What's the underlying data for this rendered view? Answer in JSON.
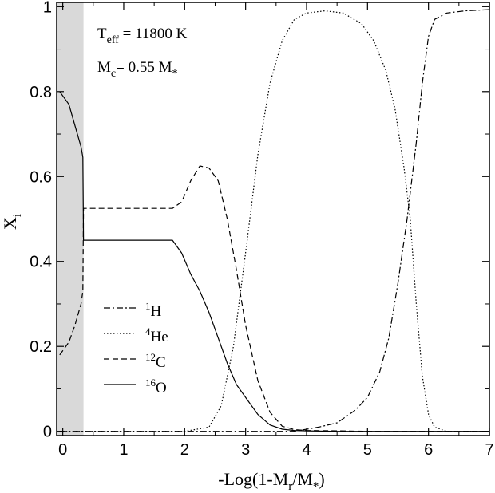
{
  "chart_data": {
    "type": "line",
    "xlabel": {
      "main": "-Log(1-M",
      "sub_r": "r",
      "mid": "/M",
      "sub_star": "*",
      "end": ")"
    },
    "ylabel": {
      "main": "X",
      "sub": "i"
    },
    "xlim": [
      -0.1,
      7.0
    ],
    "ylim": [
      -0.01,
      1.01
    ],
    "xticks": [
      "0",
      "1",
      "2",
      "3",
      "4",
      "5",
      "6",
      "7"
    ],
    "xtick_values": [
      0,
      1,
      2,
      3,
      4,
      5,
      6,
      7
    ],
    "yticks": [
      "0",
      "0.2",
      "0.4",
      "0.6",
      "0.8",
      "1"
    ],
    "ytick_values": [
      0,
      0.2,
      0.4,
      0.6,
      0.8,
      1.0
    ],
    "shaded_region": {
      "x0": -0.1,
      "x1": 0.34,
      "color": "#d9d9d9"
    },
    "annotations": {
      "teff": {
        "main": "T",
        "sub": "eff",
        "rest": " = 11800 K"
      },
      "mc": {
        "main": "M",
        "sub": "c",
        "rest": "= 0.55 M",
        "sub2": "*"
      }
    },
    "series": [
      {
        "name": "H",
        "superscript": "1",
        "style": "dashdot",
        "x": [
          -0.05,
          0.5,
          1,
          2,
          3,
          3.8,
          4.2,
          4.5,
          4.8,
          5.0,
          5.2,
          5.35,
          5.5,
          5.65,
          5.8,
          5.9,
          6.0,
          6.1,
          6.3,
          6.6,
          7.0
        ],
        "y": [
          0.0,
          0.0,
          0.0,
          0.0,
          0.0,
          0.0,
          0.01,
          0.02,
          0.05,
          0.08,
          0.14,
          0.22,
          0.35,
          0.5,
          0.68,
          0.82,
          0.93,
          0.97,
          0.985,
          0.99,
          0.993
        ]
      },
      {
        "name": "He",
        "superscript": "4",
        "style": "dotted",
        "x": [
          -0.05,
          1,
          2,
          2.4,
          2.6,
          2.8,
          3.0,
          3.2,
          3.4,
          3.6,
          3.8,
          4.0,
          4.3,
          4.6,
          4.9,
          5.1,
          5.3,
          5.45,
          5.6,
          5.7,
          5.8,
          5.9,
          6.0,
          6.1,
          6.3,
          7.0
        ],
        "y": [
          0.0,
          0.0,
          0.0,
          0.01,
          0.06,
          0.2,
          0.42,
          0.65,
          0.82,
          0.92,
          0.97,
          0.985,
          0.99,
          0.985,
          0.96,
          0.92,
          0.85,
          0.76,
          0.62,
          0.5,
          0.3,
          0.13,
          0.04,
          0.01,
          0.0,
          0.0
        ]
      },
      {
        "name": "C",
        "superscript": "12",
        "style": "dashed",
        "x": [
          -0.05,
          0.1,
          0.2,
          0.3,
          0.33,
          0.34,
          0.5,
          1.0,
          1.5,
          1.8,
          1.95,
          2.1,
          2.25,
          2.4,
          2.55,
          2.7,
          2.85,
          3.0,
          3.2,
          3.4,
          3.6,
          3.8,
          4.0,
          4.5,
          5.0,
          7.0
        ],
        "y": [
          0.18,
          0.21,
          0.25,
          0.3,
          0.33,
          0.525,
          0.525,
          0.525,
          0.525,
          0.525,
          0.54,
          0.59,
          0.625,
          0.62,
          0.59,
          0.5,
          0.38,
          0.25,
          0.12,
          0.045,
          0.012,
          0.004,
          0.002,
          0.001,
          0.0,
          0.0
        ]
      },
      {
        "name": "O",
        "superscript": "16",
        "style": "solid",
        "x": [
          -0.05,
          0.1,
          0.2,
          0.3,
          0.33,
          0.34,
          0.5,
          1.0,
          1.5,
          1.8,
          1.95,
          2.1,
          2.25,
          2.4,
          2.55,
          2.7,
          2.85,
          3.0,
          3.2,
          3.4,
          3.6,
          3.8,
          4.0,
          4.5,
          7.0
        ],
        "y": [
          0.8,
          0.77,
          0.72,
          0.67,
          0.645,
          0.45,
          0.45,
          0.45,
          0.45,
          0.45,
          0.42,
          0.37,
          0.33,
          0.28,
          0.22,
          0.16,
          0.11,
          0.08,
          0.04,
          0.015,
          0.005,
          0.002,
          0.001,
          0.0,
          0.0
        ]
      }
    ],
    "legend": {
      "placement": "lower-left"
    }
  }
}
